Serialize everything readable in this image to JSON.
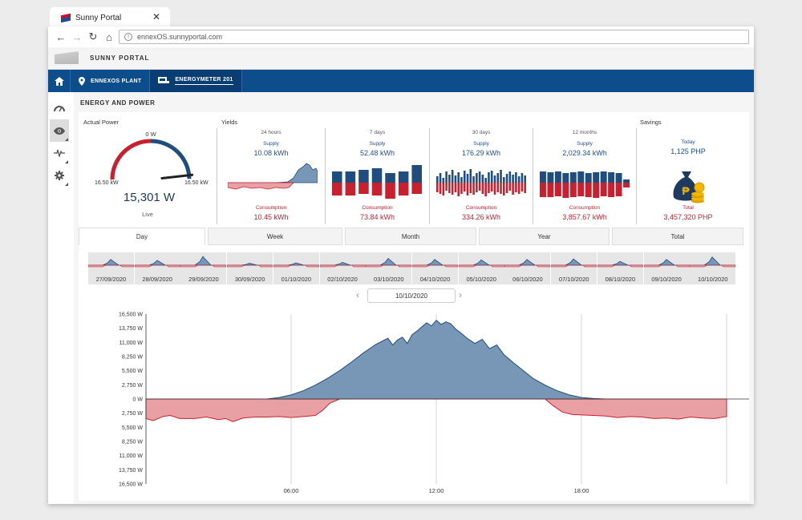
{
  "browser": {
    "tab_title": "Sunny Portal",
    "url": "ennexOS.sunnyportal.com"
  },
  "app": {
    "title": "SUNNY PORTAL"
  },
  "navbar": {
    "items": [
      {
        "label": "ENNEXOS PLANT"
      },
      {
        "label": "ENERGYMETER 201"
      }
    ]
  },
  "section_title": "ENERGY AND POWER",
  "actual_power": {
    "label": "Actual Power",
    "gauge_top": "0 W",
    "gauge_left": "16.50 kW",
    "gauge_right": "16.50 kW",
    "value": "15,301 W",
    "status": "Live",
    "fraction": 0.93
  },
  "yields": {
    "label": "Yields",
    "periods": [
      {
        "period": "24 hours",
        "supply_label": "Supply",
        "supply": "10.08 kWh",
        "consumption_label": "Consumption",
        "consumption": "10.45 kWh"
      },
      {
        "period": "7 days",
        "supply_label": "Supply",
        "supply": "52.48 kWh",
        "consumption_label": "Consumption",
        "consumption": "73.84 kWh"
      },
      {
        "period": "30 days",
        "supply_label": "Supply",
        "supply": "176.29 kWh",
        "consumption_label": "Consumption",
        "consumption": "334.26 kWh"
      },
      {
        "period": "12 months",
        "supply_label": "Supply",
        "supply": "2,029.34 kWh",
        "consumption_label": "Consumption",
        "consumption": "3,857.67 kWh"
      }
    ]
  },
  "savings": {
    "label": "Savings",
    "today_label": "Today",
    "today": "1,125 PHP",
    "total_label": "Total",
    "total": "3,457,320  PHP"
  },
  "tabs": [
    "Day",
    "Week",
    "Month",
    "Year",
    "Total"
  ],
  "days": [
    "27/09/2020",
    "28/09/2020",
    "29/09/2020",
    "30/09/2020",
    "01/10/2020",
    "02/10/2020",
    "03/10/2020",
    "04/10/2020",
    "05/10/2020",
    "06/10/2020",
    "07/10/2020",
    "08/10/2020",
    "09/10/2020",
    "10/10/2020"
  ],
  "selected_date": "10/10/2020",
  "colors": {
    "supply": "#1f4e7e",
    "supply_fill": "#7896b6",
    "consumption": "#c8202e",
    "consumption_fill": "#e8a0a4",
    "nav": "#0d4d8c"
  },
  "chart_data": {
    "type": "area",
    "x_ticks": [
      "06:00",
      "12:00",
      "18:00"
    ],
    "y_ticks": [
      "16,500 W",
      "13,750 W",
      "11,000 W",
      "8,250 W",
      "5,500 W",
      "2,750 W",
      "0 W",
      "2,750 W",
      "5,500 W",
      "8,250 W",
      "11,000 W",
      "13,750 W",
      "16,500 W"
    ],
    "ylim": [
      -16500,
      16500
    ],
    "xlim_hours": [
      0,
      24
    ],
    "series": [
      {
        "name": "Supply",
        "x": [
          0,
          5.0,
          5.5,
          6.0,
          6.5,
          7.0,
          7.5,
          8.0,
          8.5,
          9.0,
          9.5,
          10.0,
          10.2,
          10.4,
          10.6,
          10.8,
          11.0,
          11.2,
          11.4,
          11.6,
          11.8,
          12.0,
          12.2,
          12.4,
          12.6,
          12.8,
          13.0,
          13.3,
          13.6,
          13.9,
          14.2,
          14.5,
          14.8,
          15.2,
          15.6,
          16.0,
          16.5,
          17.0,
          17.5,
          18.0,
          18.5,
          19.0,
          19.5,
          24
        ],
        "y": [
          0,
          0,
          300,
          800,
          1600,
          2700,
          4000,
          5500,
          7200,
          9000,
          10600,
          11800,
          10500,
          11500,
          12000,
          10800,
          12500,
          13200,
          14000,
          14800,
          14200,
          15300,
          14500,
          15000,
          14600,
          13600,
          12900,
          11700,
          10800,
          11600,
          9800,
          10500,
          8600,
          7000,
          5500,
          4000,
          2700,
          1600,
          800,
          300,
          100,
          0,
          0,
          0
        ]
      },
      {
        "name": "Consumption",
        "x": [
          0,
          0.3,
          0.7,
          1.0,
          1.4,
          2.0,
          2.5,
          3.0,
          3.3,
          3.6,
          4.0,
          4.5,
          5.0,
          5.5,
          6.0,
          6.5,
          7.0,
          7.3,
          7.6,
          8.0,
          16.5,
          16.8,
          17.2,
          17.6,
          18.0,
          18.5,
          19.0,
          19.5,
          20.0,
          20.5,
          21.0,
          21.5,
          22.0,
          22.5,
          23.0,
          23.5,
          24
        ],
        "y": [
          -3800,
          -4200,
          -3400,
          -3200,
          -3800,
          -3800,
          -3500,
          -4000,
          -3800,
          -4400,
          -3700,
          -3500,
          -3500,
          -3400,
          -3600,
          -3400,
          -3200,
          -2200,
          -800,
          0,
          0,
          -1200,
          -2500,
          -3000,
          -3100,
          -3200,
          -3300,
          -3600,
          -3400,
          -3500,
          -3800,
          -3700,
          -3900,
          -3500,
          -3700,
          -3800,
          -3400
        ]
      }
    ]
  }
}
